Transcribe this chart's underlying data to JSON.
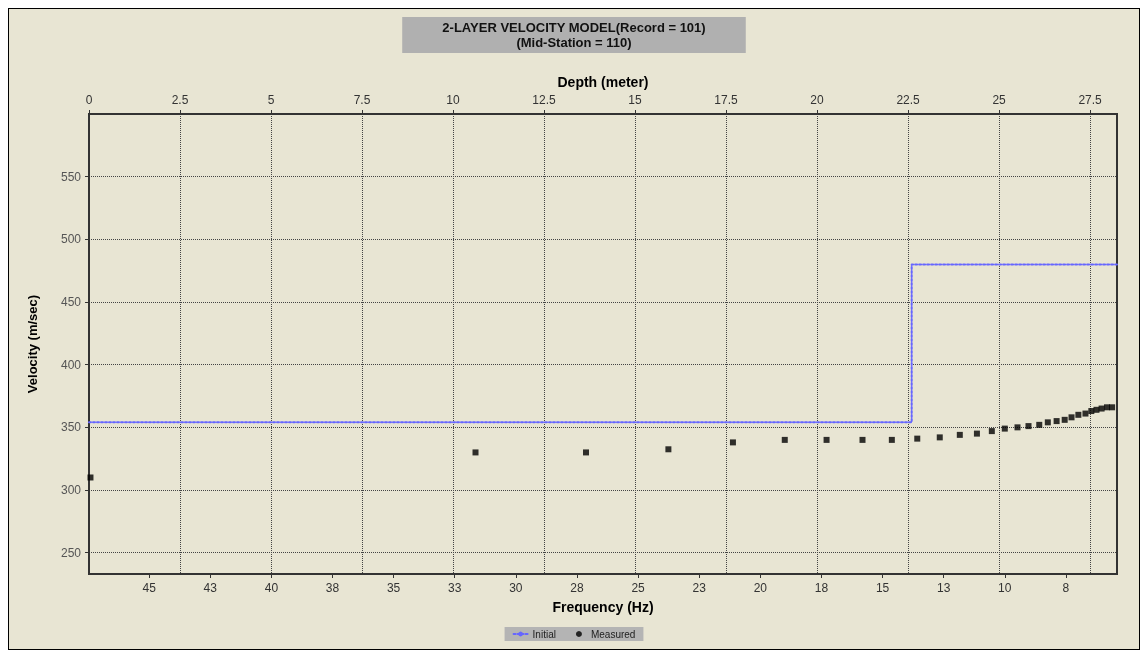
{
  "chart_data": {
    "type": "scatter",
    "title": "2-LAYER VELOCITY MODEL(Record = 101)",
    "subtitle": "(Mid-Station = 110)",
    "xlabel": "Frequency (Hz)",
    "x2label": "Depth (meter)",
    "ylabel": "Velocity (m/sec)",
    "xlim": [
      47.46,
      5.41
    ],
    "xticks": [
      {
        "value": 45,
        "label": "45"
      },
      {
        "value": 42.5,
        "label": "43"
      },
      {
        "value": 40,
        "label": "40"
      },
      {
        "value": 37.5,
        "label": "38"
      },
      {
        "value": 35,
        "label": "35"
      },
      {
        "value": 32.5,
        "label": "33"
      },
      {
        "value": 30,
        "label": "30"
      },
      {
        "value": 27.5,
        "label": "28"
      },
      {
        "value": 25,
        "label": "25"
      },
      {
        "value": 22.5,
        "label": "23"
      },
      {
        "value": 20,
        "label": "20"
      },
      {
        "value": 17.5,
        "label": "18"
      },
      {
        "value": 15,
        "label": "15"
      },
      {
        "value": 12.5,
        "label": "13"
      },
      {
        "value": 10,
        "label": "10"
      },
      {
        "value": 7.5,
        "label": "8"
      }
    ],
    "x2lim": [
      0,
      28.24
    ],
    "x2ticks": [
      0,
      2.5,
      5,
      7.5,
      10,
      12.5,
      15,
      17.5,
      20,
      22.5,
      25,
      27.5
    ],
    "ylim": [
      233,
      600
    ],
    "yticks": [
      250,
      300,
      350,
      400,
      450,
      500,
      550
    ],
    "grid": true,
    "legend": "bottom",
    "series": [
      {
        "name": "Initial",
        "type": "step",
        "axis": "x2",
        "color": "#6666ff",
        "line_style": "dotted",
        "marker": "none",
        "x": [
          0,
          22.6,
          28.24
        ],
        "values": [
          354,
          480,
          480
        ]
      },
      {
        "name": "Measured",
        "color": "#000000",
        "marker": "square",
        "x": [
          47.4,
          31.65,
          27.13,
          23.76,
          21.12,
          19.0,
          17.29,
          15.82,
          14.62,
          13.58,
          12.66,
          11.84,
          11.14,
          10.53,
          10.0,
          9.48,
          9.03,
          8.59,
          8.24,
          7.88,
          7.55,
          7.27,
          6.99,
          6.7,
          6.46,
          6.25,
          6.04,
          5.82,
          5.61
        ],
        "values": [
          310,
          330,
          330,
          332.5,
          338,
          340,
          340,
          340,
          340,
          341,
          342,
          344,
          345,
          347,
          349,
          350,
          351,
          352,
          354,
          355,
          356,
          358,
          360,
          361,
          363,
          364,
          365,
          366,
          366
        ]
      }
    ]
  }
}
